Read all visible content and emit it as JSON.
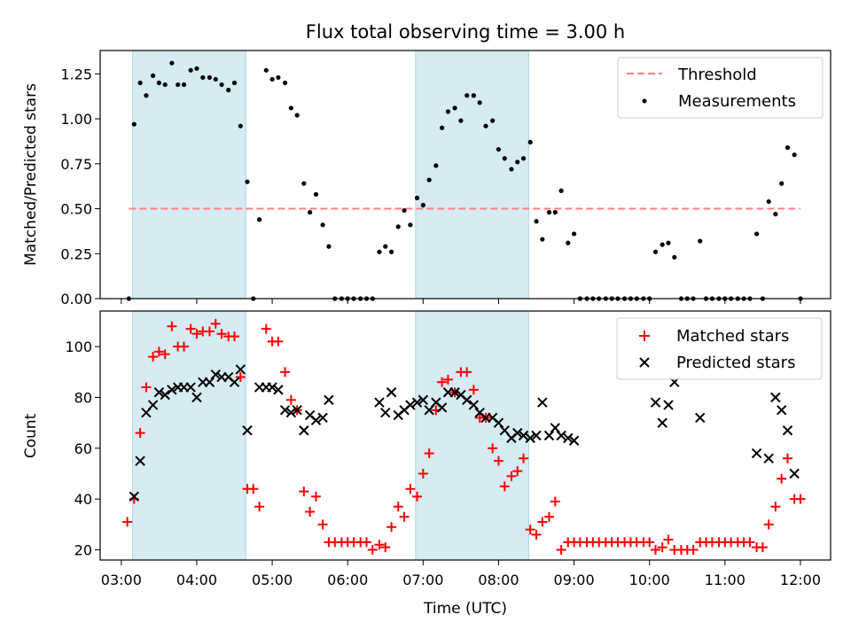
{
  "chart_data": [
    {
      "type": "scatter",
      "title": "Flux total observing time = 3.00 h",
      "xlabel": "",
      "ylabel": "Matched/Predicted stars",
      "ylim": [
        0,
        1.38
      ],
      "yticks": [
        "0.00",
        "0.25",
        "0.50",
        "0.75",
        "1.00",
        "1.25"
      ],
      "xlim_hours": [
        2.72,
        12.4
      ],
      "shaded_spans_hours": [
        [
          3.15,
          4.65
        ],
        [
          6.9,
          8.4
        ]
      ],
      "shade_color": "#add8e6",
      "threshold": {
        "name": "Threshold",
        "y": 0.5,
        "x_start_hours": 3.1,
        "x_end_hours": 12.0,
        "color": "#ff7f7f",
        "style": "dashed"
      },
      "legend_position": "upper right",
      "legend": [
        "Threshold",
        "Measurements"
      ],
      "series": [
        {
          "name": "Measurements",
          "color": "#000000",
          "marker": "dot",
          "x_hours": [
            3.1,
            3.17,
            3.25,
            3.33,
            3.42,
            3.5,
            3.58,
            3.67,
            3.75,
            3.83,
            3.92,
            4.0,
            4.08,
            4.17,
            4.25,
            4.33,
            4.42,
            4.5,
            4.58,
            4.67,
            4.75,
            4.83,
            4.92,
            5.0,
            5.08,
            5.17,
            5.25,
            5.33,
            5.42,
            5.5,
            5.58,
            5.67,
            5.75,
            5.83,
            5.92,
            6.0,
            6.08,
            6.17,
            6.25,
            6.33,
            6.42,
            6.5,
            6.58,
            6.67,
            6.75,
            6.83,
            6.92,
            7.0,
            7.08,
            7.17,
            7.25,
            7.33,
            7.42,
            7.5,
            7.58,
            7.67,
            7.75,
            7.83,
            7.92,
            8.0,
            8.08,
            8.17,
            8.25,
            8.33,
            8.42,
            8.5,
            8.58,
            8.67,
            8.75,
            8.83,
            8.92,
            9.0,
            9.08,
            9.17,
            9.25,
            9.33,
            9.42,
            9.5,
            9.58,
            9.67,
            9.75,
            9.83,
            9.92,
            10.0,
            10.08,
            10.17,
            10.25,
            10.33,
            10.42,
            10.5,
            10.58,
            10.67,
            10.75,
            10.83,
            10.92,
            11.0,
            11.08,
            11.17,
            11.25,
            11.33,
            11.42,
            11.5,
            11.58,
            11.67,
            11.75,
            11.83,
            11.92,
            12.0
          ],
          "y": [
            0.0,
            0.97,
            1.2,
            1.13,
            1.24,
            1.2,
            1.19,
            1.31,
            1.19,
            1.19,
            1.27,
            1.28,
            1.23,
            1.23,
            1.22,
            1.19,
            1.16,
            1.2,
            0.96,
            0.65,
            0.0,
            0.44,
            1.27,
            1.22,
            1.23,
            1.2,
            1.06,
            1.02,
            0.64,
            0.48,
            0.58,
            0.41,
            0.29,
            0.0,
            0.0,
            0.0,
            0.0,
            0.0,
            0.0,
            0.0,
            0.26,
            0.29,
            0.26,
            0.4,
            0.49,
            0.41,
            0.56,
            0.52,
            0.66,
            0.74,
            0.95,
            1.04,
            1.06,
            0.99,
            1.13,
            1.13,
            1.09,
            0.96,
            0.99,
            0.83,
            0.78,
            0.72,
            0.76,
            0.78,
            0.87,
            0.43,
            0.33,
            0.48,
            0.48,
            0.6,
            0.31,
            0.36,
            0.0,
            0.0,
            0.0,
            0.0,
            0.0,
            0.0,
            0.0,
            0.0,
            0.0,
            0.0,
            0.0,
            0.0,
            0.26,
            0.3,
            0.31,
            0.23,
            0.0,
            0.0,
            0.0,
            0.32,
            0.0,
            0.0,
            0.0,
            0.0,
            0.0,
            0.0,
            0.0,
            0.0,
            0.36,
            0.0,
            0.54,
            0.47,
            0.64,
            0.84,
            0.8,
            0.0
          ]
        }
      ]
    },
    {
      "type": "scatter",
      "title": "",
      "xlabel": "Time (UTC)",
      "ylabel": "Count",
      "ylim": [
        16,
        114
      ],
      "yticks": [
        "20",
        "40",
        "60",
        "80",
        "100"
      ],
      "xlim_hours": [
        2.72,
        12.4
      ],
      "xticks": [
        "03:00",
        "04:00",
        "05:00",
        "06:00",
        "07:00",
        "08:00",
        "09:00",
        "10:00",
        "11:00",
        "12:00"
      ],
      "shaded_spans_hours": [
        [
          3.15,
          4.65
        ],
        [
          6.9,
          8.4
        ]
      ],
      "shade_color": "#add8e6",
      "legend_position": "upper right",
      "legend": [
        "Matched stars",
        "Predicted stars"
      ],
      "series": [
        {
          "name": "Matched stars",
          "color": "#ff0000",
          "marker": "plus",
          "x_hours": [
            3.08,
            3.17,
            3.25,
            3.33,
            3.42,
            3.5,
            3.58,
            3.67,
            3.75,
            3.83,
            3.92,
            4.0,
            4.08,
            4.17,
            4.25,
            4.33,
            4.42,
            4.5,
            4.58,
            4.67,
            4.75,
            4.83,
            4.92,
            5.0,
            5.08,
            5.17,
            5.25,
            5.33,
            5.42,
            5.5,
            5.58,
            5.67,
            5.75,
            5.83,
            5.92,
            6.0,
            6.08,
            6.17,
            6.25,
            6.33,
            6.42,
            6.5,
            6.58,
            6.67,
            6.75,
            6.83,
            6.92,
            7.0,
            7.08,
            7.17,
            7.25,
            7.33,
            7.42,
            7.5,
            7.58,
            7.67,
            7.75,
            7.83,
            7.92,
            8.0,
            8.08,
            8.17,
            8.25,
            8.33,
            8.42,
            8.5,
            8.58,
            8.67,
            8.75,
            8.83,
            8.92,
            9.0,
            9.08,
            9.17,
            9.25,
            9.33,
            9.42,
            9.5,
            9.58,
            9.67,
            9.75,
            9.83,
            9.92,
            10.0,
            10.08,
            10.17,
            10.25,
            10.33,
            10.42,
            10.5,
            10.58,
            10.67,
            10.75,
            10.83,
            10.92,
            11.0,
            11.08,
            11.17,
            11.25,
            11.33,
            11.42,
            11.5,
            11.58,
            11.67,
            11.75,
            11.83,
            11.92,
            12.0
          ],
          "y": [
            31,
            40,
            66,
            84,
            96,
            98,
            97,
            108,
            100,
            100,
            107,
            105,
            106,
            106,
            109,
            105,
            104,
            104,
            88,
            44,
            44,
            37,
            107,
            102,
            102,
            90,
            79,
            75,
            43,
            35,
            41,
            30,
            23,
            23,
            23,
            23,
            23,
            23,
            23,
            20,
            22,
            21,
            29,
            37,
            33,
            44,
            41,
            50,
            58,
            75,
            86,
            87,
            82,
            90,
            90,
            83,
            72,
            72,
            60,
            55,
            45,
            49,
            51,
            56,
            28,
            26,
            31,
            33,
            39,
            20,
            23,
            23,
            23,
            23,
            23,
            23,
            23,
            23,
            23,
            23,
            23,
            23,
            23,
            23,
            20,
            21,
            24,
            20,
            20,
            20,
            20,
            23,
            23,
            23,
            23,
            23,
            23,
            23,
            23,
            23,
            21,
            21,
            30,
            37,
            48,
            56,
            40,
            40
          ]
        },
        {
          "name": "Predicted stars",
          "color": "#000000",
          "marker": "x",
          "x_hours": [
            3.17,
            3.25,
            3.33,
            3.42,
            3.5,
            3.58,
            3.67,
            3.75,
            3.83,
            3.92,
            4.0,
            4.08,
            4.17,
            4.25,
            4.33,
            4.42,
            4.5,
            4.58,
            4.67,
            4.83,
            4.92,
            5.0,
            5.08,
            5.17,
            5.25,
            5.33,
            5.42,
            5.5,
            5.58,
            5.67,
            5.75,
            6.42,
            6.5,
            6.58,
            6.67,
            6.75,
            6.83,
            6.92,
            7.0,
            7.08,
            7.17,
            7.25,
            7.33,
            7.42,
            7.5,
            7.58,
            7.67,
            7.75,
            7.83,
            7.92,
            8.0,
            8.08,
            8.17,
            8.25,
            8.33,
            8.42,
            8.5,
            8.58,
            8.67,
            8.75,
            8.83,
            8.92,
            9.0,
            10.08,
            10.17,
            10.25,
            10.33,
            10.67,
            11.42,
            11.58,
            11.67,
            11.75,
            11.83,
            11.92
          ],
          "y": [
            41,
            55,
            74,
            77,
            82,
            81,
            83,
            84,
            84,
            84,
            80,
            86,
            86,
            89,
            88,
            88,
            86,
            91,
            67,
            84,
            84,
            84,
            83,
            75,
            74,
            75,
            67,
            73,
            71,
            72,
            79,
            78,
            74,
            82,
            73,
            75,
            77,
            78,
            79,
            75,
            78,
            76,
            82,
            82,
            81,
            79,
            77,
            74,
            72,
            72,
            70,
            67,
            64,
            66,
            65,
            64,
            65,
            78,
            65,
            68,
            65,
            64,
            63,
            78,
            70,
            77,
            86,
            72,
            58,
            56,
            80,
            75,
            67,
            50
          ]
        }
      ]
    }
  ]
}
